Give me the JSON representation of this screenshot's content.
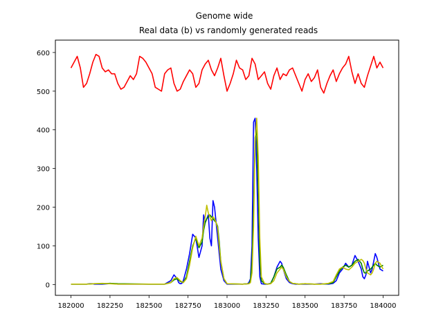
{
  "chart_data": {
    "type": "line",
    "title_line1": "Genome wide",
    "title_line2": "Real data (b) vs randomly generated reads",
    "xlabel": "",
    "ylabel": "",
    "xlim": [
      181900,
      184100
    ],
    "ylim": [
      -28,
      632
    ],
    "xticks": [
      182000,
      182250,
      182500,
      182750,
      183000,
      183250,
      183500,
      183750,
      184000
    ],
    "yticks": [
      0,
      100,
      200,
      300,
      400,
      500,
      600
    ],
    "grid": false,
    "series": [
      {
        "color": "#ff0000",
        "x": [
          182000,
          182020,
          182040,
          182060,
          182080,
          182100,
          182120,
          182140,
          182160,
          182180,
          182200,
          182220,
          182240,
          182260,
          182280,
          182300,
          182320,
          182340,
          182360,
          182380,
          182400,
          182420,
          182440,
          182460,
          182480,
          182500,
          182520,
          182540,
          182560,
          182580,
          182600,
          182620,
          182640,
          182660,
          182680,
          182700,
          182720,
          182740,
          182760,
          182780,
          182800,
          182820,
          182840,
          182860,
          182880,
          182900,
          182920,
          182940,
          182960,
          182980,
          183000,
          183020,
          183040,
          183060,
          183080,
          183100,
          183120,
          183140,
          183160,
          183180,
          183200,
          183220,
          183240,
          183260,
          183280,
          183300,
          183320,
          183340,
          183360,
          183380,
          183400,
          183420,
          183440,
          183460,
          183480,
          183500,
          183520,
          183540,
          183560,
          183580,
          183600,
          183620,
          183640,
          183660,
          183680,
          183700,
          183720,
          183740,
          183760,
          183780,
          183800,
          183820,
          183840,
          183860,
          183880,
          183900,
          183920,
          183940,
          183960,
          183980,
          184000
        ],
        "values": [
          560,
          575,
          590,
          560,
          510,
          520,
          545,
          575,
          595,
          590,
          560,
          550,
          555,
          545,
          545,
          520,
          505,
          510,
          525,
          540,
          530,
          545,
          590,
          585,
          575,
          560,
          545,
          510,
          505,
          500,
          545,
          555,
          560,
          520,
          500,
          505,
          525,
          540,
          555,
          545,
          510,
          520,
          555,
          570,
          580,
          555,
          540,
          560,
          585,
          540,
          500,
          520,
          545,
          580,
          560,
          555,
          530,
          540,
          585,
          570,
          530,
          540,
          550,
          520,
          505,
          540,
          560,
          530,
          545,
          540,
          555,
          560,
          540,
          520,
          500,
          530,
          545,
          525,
          535,
          555,
          510,
          495,
          520,
          540,
          555,
          525,
          545,
          560,
          570,
          590,
          550,
          520,
          545,
          520,
          510,
          540,
          565,
          590,
          560,
          575,
          560
        ]
      },
      {
        "color": "#0000ff",
        "x": [
          182000,
          182100,
          182120,
          182140,
          182150,
          182200,
          182240,
          182250,
          182300,
          182400,
          182500,
          182600,
          182640,
          182660,
          182680,
          182690,
          182700,
          182710,
          182720,
          182740,
          182760,
          182780,
          182800,
          182820,
          182840,
          182850,
          182860,
          182870,
          182880,
          182890,
          182900,
          182910,
          182920,
          182930,
          182940,
          182950,
          182960,
          182980,
          183000,
          183050,
          183100,
          183130,
          183140,
          183150,
          183160,
          183170,
          183180,
          183190,
          183200,
          183210,
          183220,
          183240,
          183260,
          183280,
          183300,
          183320,
          183340,
          183350,
          183360,
          183380,
          183400,
          183420,
          183440,
          183460,
          183500,
          183560,
          183600,
          183650,
          183680,
          183700,
          183720,
          183740,
          183760,
          183780,
          183800,
          183820,
          183840,
          183860,
          183870,
          183880,
          183890,
          183900,
          183920,
          183930,
          183940,
          183950,
          183960,
          183980,
          184000
        ],
        "values": [
          1,
          1,
          2,
          2,
          1,
          1,
          2,
          3,
          1,
          1,
          1,
          1,
          10,
          25,
          15,
          5,
          2,
          3,
          10,
          40,
          80,
          130,
          120,
          70,
          100,
          180,
          160,
          170,
          180,
          120,
          100,
          217,
          200,
          160,
          120,
          80,
          40,
          10,
          1,
          1,
          1,
          2,
          5,
          15,
          100,
          420,
          430,
          300,
          120,
          20,
          2,
          1,
          1,
          3,
          20,
          45,
          60,
          55,
          40,
          15,
          5,
          2,
          1,
          1,
          1,
          1,
          2,
          1,
          3,
          10,
          30,
          40,
          55,
          45,
          50,
          75,
          60,
          40,
          20,
          15,
          25,
          60,
          30,
          40,
          60,
          80,
          70,
          40,
          35
        ]
      },
      {
        "color": "#008000",
        "x": [
          182000,
          182100,
          182150,
          182200,
          182250,
          182300,
          182500,
          182600,
          182640,
          182660,
          182680,
          182700,
          182720,
          182740,
          182760,
          182780,
          182800,
          182820,
          182840,
          182850,
          182860,
          182870,
          182880,
          182890,
          182900,
          182910,
          182920,
          182930,
          182940,
          182950,
          182960,
          182980,
          183000,
          183100,
          183140,
          183150,
          183160,
          183170,
          183180,
          183190,
          183200,
          183210,
          183220,
          183240,
          183260,
          183280,
          183300,
          183320,
          183340,
          183350,
          183360,
          183380,
          183400,
          183420,
          183440,
          183460,
          183500,
          183560,
          183600,
          183650,
          183680,
          183700,
          183720,
          183740,
          183760,
          183780,
          183800,
          183820,
          183840,
          183860,
          183870,
          183880,
          183890,
          183900,
          183920,
          183930,
          183940,
          183950,
          183960,
          183980,
          184000
        ],
        "values": [
          1,
          1,
          2,
          2,
          3,
          2,
          1,
          1,
          5,
          12,
          15,
          8,
          5,
          20,
          60,
          100,
          120,
          95,
          110,
          140,
          160,
          170,
          175,
          180,
          175,
          170,
          165,
          160,
          150,
          110,
          60,
          15,
          2,
          1,
          2,
          10,
          60,
          200,
          380,
          400,
          250,
          60,
          10,
          2,
          1,
          3,
          20,
          40,
          45,
          50,
          45,
          25,
          8,
          3,
          2,
          1,
          2,
          1,
          1,
          2,
          5,
          20,
          35,
          45,
          50,
          45,
          50,
          60,
          65,
          55,
          40,
          30,
          30,
          35,
          40,
          45,
          50,
          55,
          50,
          45,
          50
        ]
      },
      {
        "color": "#bfbf00",
        "x": [
          182000,
          182100,
          182150,
          182200,
          182250,
          182300,
          182500,
          182600,
          182640,
          182660,
          182680,
          182700,
          182720,
          182740,
          182760,
          182780,
          182800,
          182820,
          182840,
          182850,
          182860,
          182870,
          182880,
          182890,
          182900,
          182910,
          182920,
          182930,
          182940,
          182950,
          182960,
          182980,
          183000,
          183100,
          183140,
          183150,
          183160,
          183170,
          183180,
          183190,
          183200,
          183210,
          183220,
          183240,
          183260,
          183280,
          183300,
          183320,
          183340,
          183350,
          183360,
          183380,
          183400,
          183420,
          183440,
          183460,
          183500,
          183560,
          183600,
          183650,
          183680,
          183700,
          183720,
          183740,
          183760,
          183780,
          183800,
          183820,
          183840,
          183860,
          183870,
          183880,
          183890,
          183900,
          183920,
          183930,
          183940,
          183950,
          183960,
          183980,
          184000
        ],
        "values": [
          1,
          1,
          2,
          3,
          2,
          1,
          1,
          1,
          5,
          15,
          18,
          10,
          5,
          15,
          50,
          95,
          125,
          100,
          120,
          150,
          175,
          205,
          185,
          175,
          165,
          175,
          170,
          160,
          145,
          100,
          60,
          15,
          2,
          1,
          2,
          5,
          30,
          150,
          370,
          430,
          330,
          120,
          20,
          3,
          1,
          2,
          10,
          30,
          40,
          45,
          40,
          20,
          8,
          3,
          2,
          1,
          2,
          1,
          1,
          3,
          8,
          25,
          40,
          45,
          40,
          38,
          45,
          55,
          60,
          65,
          62,
          55,
          40,
          30,
          25,
          30,
          40,
          55,
          60,
          55,
          40
        ]
      }
    ]
  }
}
